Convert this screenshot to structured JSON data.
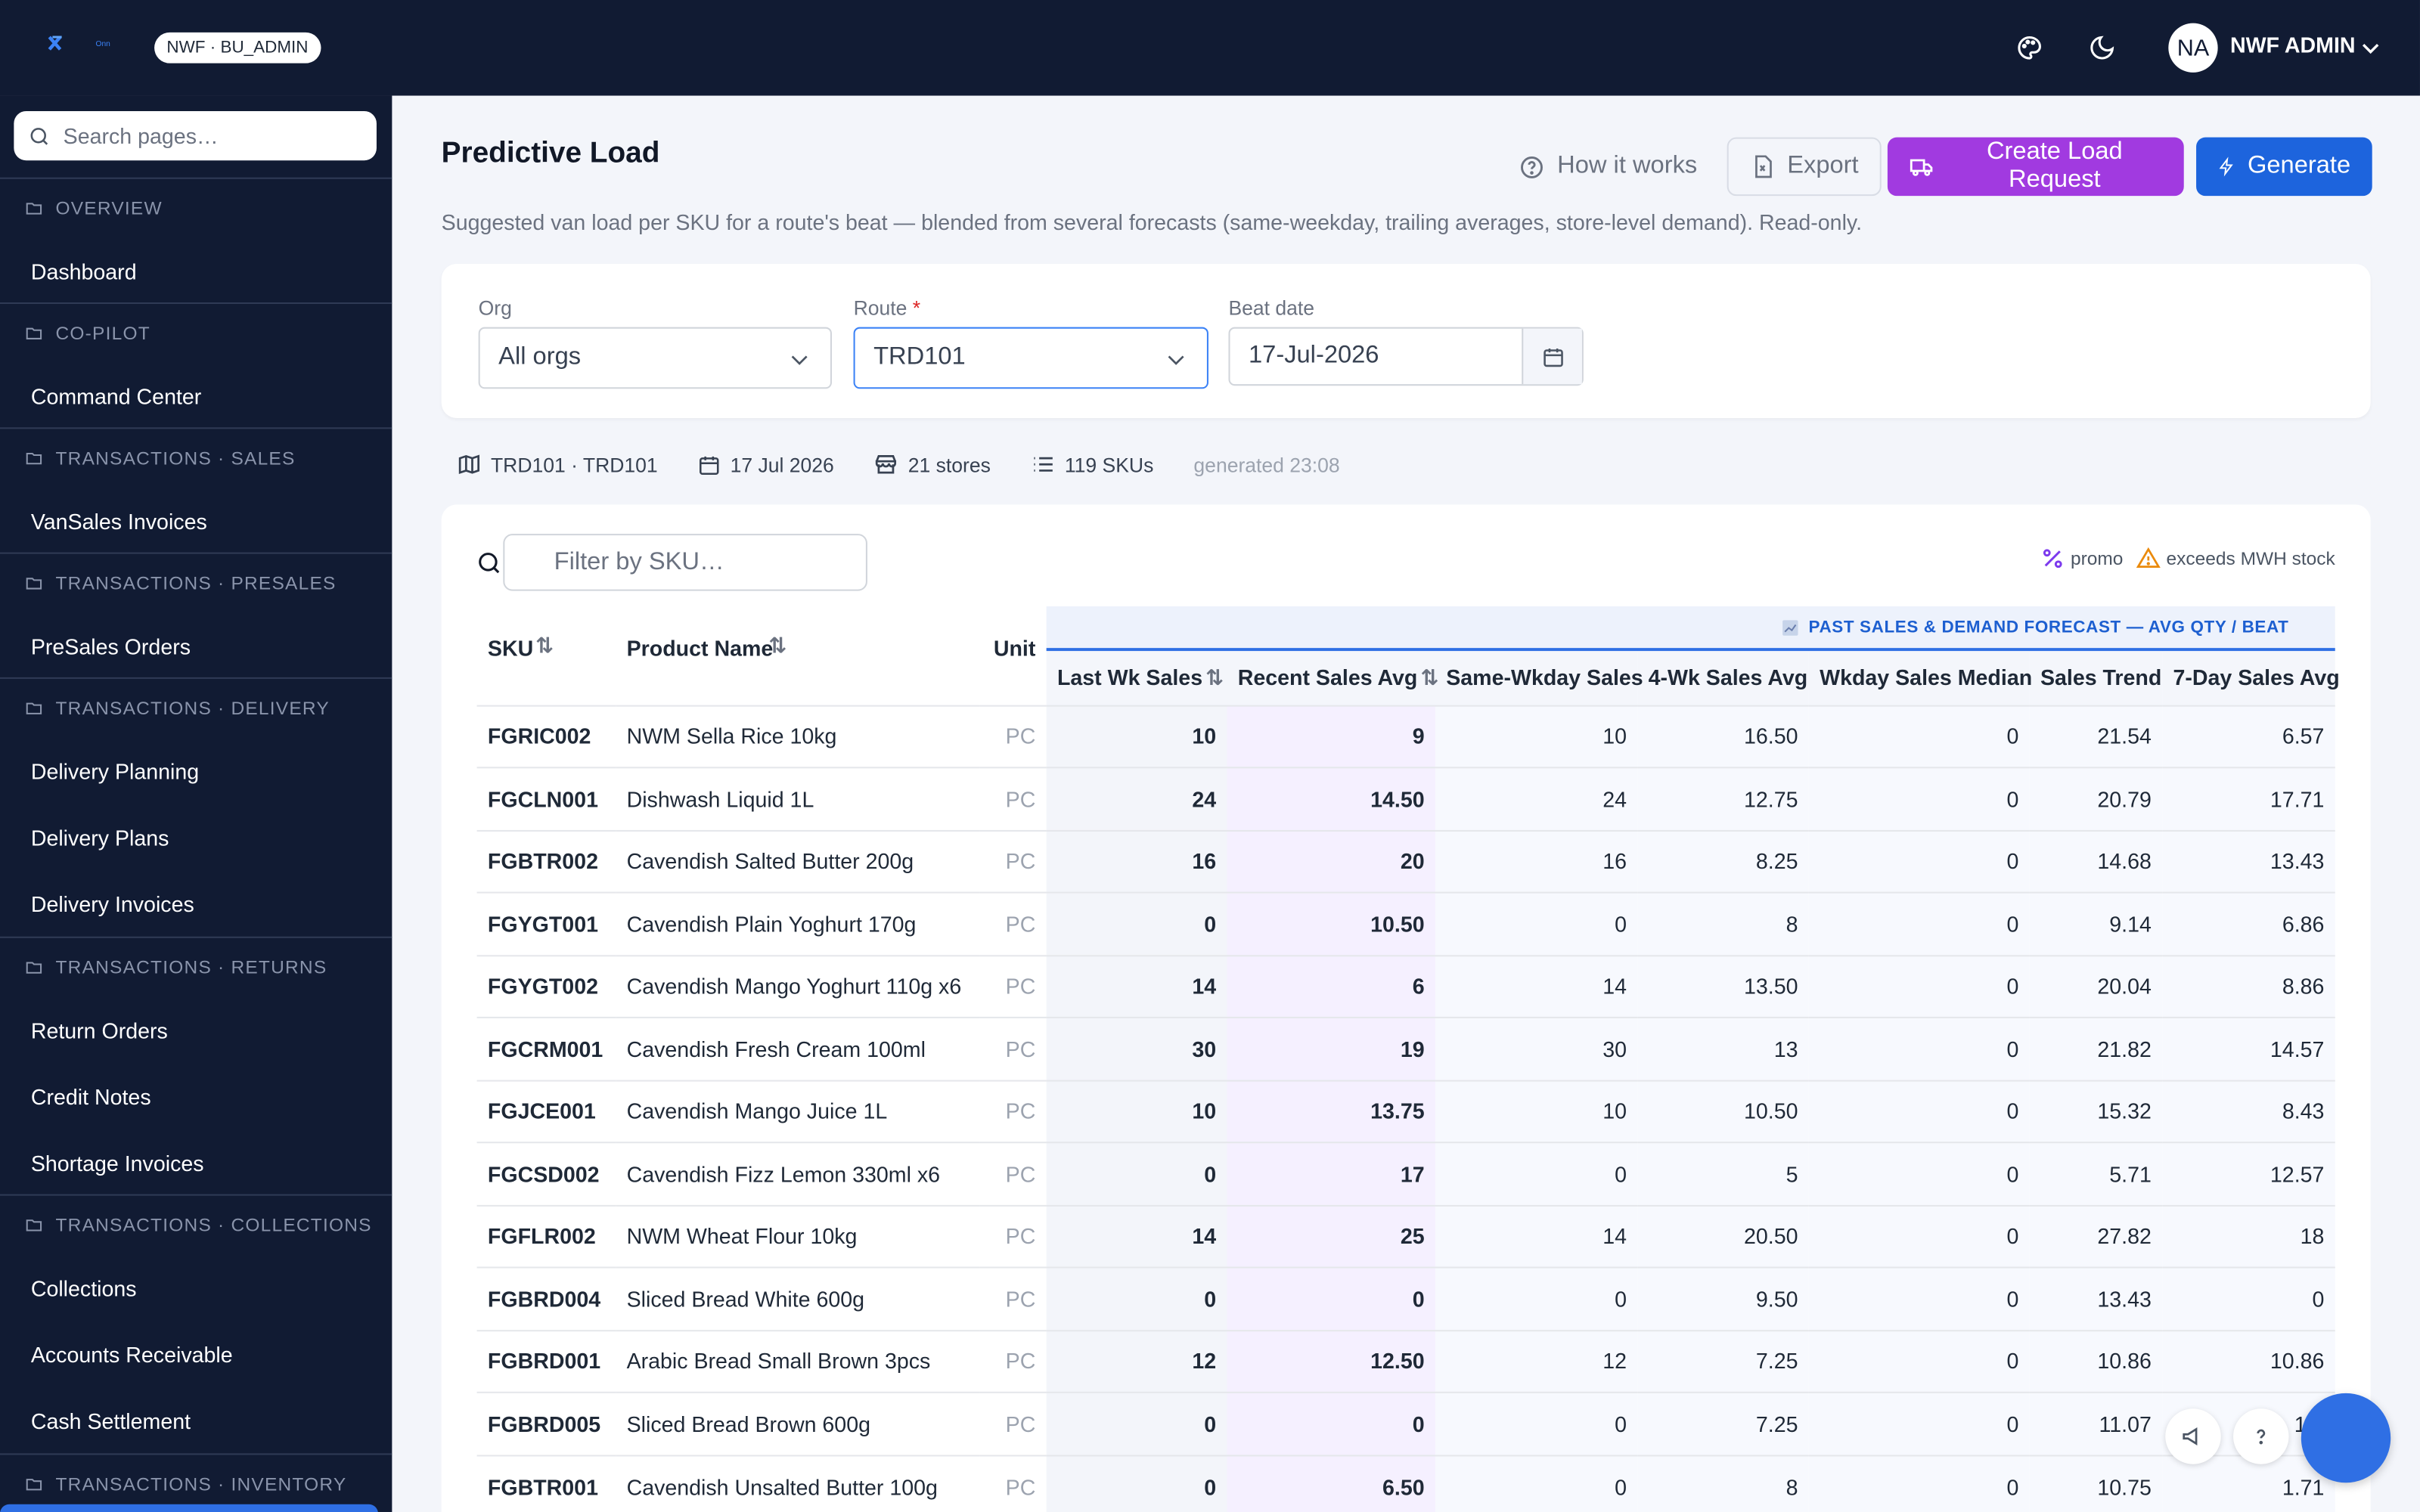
{
  "topbar": {
    "org_pill": "NWF · BU_ADMIN",
    "avatar_initials": "NA",
    "user_name": "NWF ADMIN"
  },
  "sidebar": {
    "search_placeholder": "Search pages…",
    "sections": [
      {
        "title": "OVERVIEW",
        "items": [
          "Dashboard"
        ]
      },
      {
        "title": "CO-PILOT",
        "items": [
          "Command Center"
        ]
      },
      {
        "title": "TRANSACTIONS · SALES",
        "items": [
          "VanSales Invoices"
        ]
      },
      {
        "title": "TRANSACTIONS · PRESALES",
        "items": [
          "PreSales Orders"
        ]
      },
      {
        "title": "TRANSACTIONS · DELIVERY",
        "items": [
          "Delivery Planning",
          "Delivery Plans",
          "Delivery Invoices"
        ]
      },
      {
        "title": "TRANSACTIONS · RETURNS",
        "items": [
          "Return Orders",
          "Credit Notes",
          "Shortage Invoices"
        ]
      },
      {
        "title": "TRANSACTIONS · COLLECTIONS",
        "items": [
          "Collections",
          "Accounts Receivable",
          "Cash Settlement"
        ]
      },
      {
        "title": "TRANSACTIONS · INVENTORY",
        "items": []
      }
    ]
  },
  "page": {
    "title": "Predictive Load",
    "subtitle": "Suggested van load per SKU for a route's beat — blended from several forecasts (same-weekday, trailing averages, store-level demand). Read-only.",
    "buttons": {
      "how": "How it works",
      "export": "Export",
      "create": "Create Load Request",
      "generate": "Generate"
    }
  },
  "filters": {
    "org_label": "Org",
    "org_value": "All orgs",
    "route_label": "Route",
    "route_required": "*",
    "route_value": "TRD101",
    "beat_label": "Beat date",
    "beat_value": "17-Jul-2026"
  },
  "meta": {
    "route": "TRD101 · TRD101",
    "date": "17 Jul 2026",
    "stores": "21 stores",
    "skus": "119 SKUs",
    "generated": "generated 23:08"
  },
  "table": {
    "filter_placeholder": "Filter by SKU…",
    "legend_promo": "promo",
    "legend_exceeds": "exceeds MWH stock",
    "group_title": "PAST SALES & DEMAND FORECAST — AVG QTY / BEAT",
    "headers": {
      "sku": "SKU",
      "name": "Product Name",
      "unit": "Unit",
      "last_wk": "Last Wk Sales",
      "recent": "Recent Sales Avg",
      "same_wkday": "Same-Wkday Sales",
      "four_wk": "4-Wk Sales Avg",
      "median": "Wkday Sales Median",
      "trend": "Sales Trend",
      "seven_day": "7-Day Sales Avg"
    },
    "rows": [
      {
        "sku": "FGRIC002",
        "name": "NWM Sella Rice 10kg",
        "unit": "PC",
        "last_wk": "10",
        "recent": "9",
        "same_wkday": "10",
        "four_wk": "16.50",
        "median": "0",
        "trend": "21.54",
        "seven_day": "6.57"
      },
      {
        "sku": "FGCLN001",
        "name": "Dishwash Liquid 1L",
        "unit": "PC",
        "last_wk": "24",
        "recent": "14.50",
        "same_wkday": "24",
        "four_wk": "12.75",
        "median": "0",
        "trend": "20.79",
        "seven_day": "17.71"
      },
      {
        "sku": "FGBTR002",
        "name": "Cavendish Salted Butter 200g",
        "unit": "PC",
        "last_wk": "16",
        "recent": "20",
        "same_wkday": "16",
        "four_wk": "8.25",
        "median": "0",
        "trend": "14.68",
        "seven_day": "13.43"
      },
      {
        "sku": "FGYGT001",
        "name": "Cavendish Plain Yoghurt 170g",
        "unit": "PC",
        "last_wk": "0",
        "recent": "10.50",
        "same_wkday": "0",
        "four_wk": "8",
        "median": "0",
        "trend": "9.14",
        "seven_day": "6.86"
      },
      {
        "sku": "FGYGT002",
        "name": "Cavendish Mango Yoghurt 110g x6",
        "unit": "PC",
        "last_wk": "14",
        "recent": "6",
        "same_wkday": "14",
        "four_wk": "13.50",
        "median": "0",
        "trend": "20.04",
        "seven_day": "8.86"
      },
      {
        "sku": "FGCRM001",
        "name": "Cavendish Fresh Cream 100ml",
        "unit": "PC",
        "last_wk": "30",
        "recent": "19",
        "same_wkday": "30",
        "four_wk": "13",
        "median": "0",
        "trend": "21.82",
        "seven_day": "14.57"
      },
      {
        "sku": "FGJCE001",
        "name": "Cavendish Mango Juice 1L",
        "unit": "PC",
        "last_wk": "10",
        "recent": "13.75",
        "same_wkday": "10",
        "four_wk": "10.50",
        "median": "0",
        "trend": "15.32",
        "seven_day": "8.43"
      },
      {
        "sku": "FGCSD002",
        "name": "Cavendish Fizz Lemon 330ml x6",
        "unit": "PC",
        "last_wk": "0",
        "recent": "17",
        "same_wkday": "0",
        "four_wk": "5",
        "median": "0",
        "trend": "5.71",
        "seven_day": "12.57"
      },
      {
        "sku": "FGFLR002",
        "name": "NWM Wheat Flour 10kg",
        "unit": "PC",
        "last_wk": "14",
        "recent": "25",
        "same_wkday": "14",
        "four_wk": "20.50",
        "median": "0",
        "trend": "27.82",
        "seven_day": "18"
      },
      {
        "sku": "FGBRD004",
        "name": "Sliced Bread White 600g",
        "unit": "PC",
        "last_wk": "0",
        "recent": "0",
        "same_wkday": "0",
        "four_wk": "9.50",
        "median": "0",
        "trend": "13.43",
        "seven_day": "0"
      },
      {
        "sku": "FGBRD001",
        "name": "Arabic Bread Small Brown 3pcs",
        "unit": "PC",
        "last_wk": "12",
        "recent": "12.50",
        "same_wkday": "12",
        "four_wk": "7.25",
        "median": "0",
        "trend": "10.86",
        "seven_day": "10.86"
      },
      {
        "sku": "FGBRD005",
        "name": "Sliced Bread Brown 600g",
        "unit": "PC",
        "last_wk": "0",
        "recent": "0",
        "same_wkday": "0",
        "four_wk": "7.25",
        "median": "0",
        "trend": "11.07",
        "seven_day": "1.1"
      },
      {
        "sku": "FGBTR001",
        "name": "Cavendish Unsalted Butter 100g",
        "unit": "PC",
        "last_wk": "0",
        "recent": "6.50",
        "same_wkday": "0",
        "four_wk": "8",
        "median": "0",
        "trend": "10.75",
        "seven_day": "1.71"
      }
    ]
  },
  "colors": {
    "topbar_bg": "#111b33",
    "accent_blue": "#1d64dd",
    "accent_purple": "#a13ae0",
    "promo_purple": "#7c3aed",
    "warning_orange": "#ea8a0c"
  },
  "icons": [
    "logo",
    "palette-icon",
    "moon-icon",
    "chevron-down-icon",
    "search-icon",
    "folder-icon",
    "help-circle-icon",
    "export-file-icon",
    "truck-icon",
    "bolt-icon",
    "calendar-icon",
    "map-icon",
    "store-icon",
    "list-icon",
    "percent-icon",
    "warning-icon",
    "sort-icon",
    "chart-icon",
    "megaphone-icon",
    "question-icon"
  ]
}
